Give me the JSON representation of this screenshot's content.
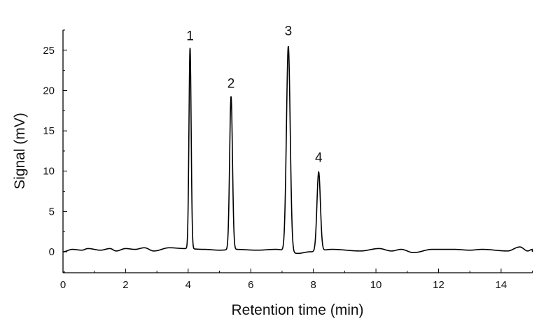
{
  "chart_data": {
    "type": "line",
    "title": "",
    "xlabel": "Retention time (min)",
    "ylabel": "Signal (mV)",
    "xlim": [
      0,
      15
    ],
    "ylim": [
      -2.6,
      27.5
    ],
    "xticks": [
      0,
      2,
      4,
      6,
      8,
      10,
      12,
      14
    ],
    "yticks": [
      0,
      5,
      10,
      15,
      20,
      25
    ],
    "grid": false,
    "line_color": "#000000",
    "peaks": [
      {
        "label": "1",
        "x": 4.06,
        "y": 25.2,
        "width": 0.035
      },
      {
        "label": "2",
        "x": 5.37,
        "y": 19.3,
        "width": 0.045
      },
      {
        "label": "3",
        "x": 7.2,
        "y": 25.8,
        "width": 0.06
      },
      {
        "label": "4",
        "x": 8.17,
        "y": 10.1,
        "width": 0.055
      }
    ],
    "baseline": [
      [
        0,
        0.0
      ],
      [
        0.3,
        0.3
      ],
      [
        0.6,
        0.2
      ],
      [
        0.8,
        0.4
      ],
      [
        1.2,
        0.2
      ],
      [
        1.5,
        0.4
      ],
      [
        1.7,
        0.1
      ],
      [
        2.0,
        0.4
      ],
      [
        2.3,
        0.3
      ],
      [
        2.6,
        0.5
      ],
      [
        2.9,
        0.1
      ],
      [
        3.4,
        0.5
      ],
      [
        3.9,
        0.4
      ],
      [
        4.5,
        0.3
      ],
      [
        5.0,
        0.2
      ],
      [
        5.5,
        0.3
      ],
      [
        6.2,
        0.2
      ],
      [
        6.8,
        0.3
      ],
      [
        7.5,
        -0.2
      ],
      [
        7.9,
        0.0
      ],
      [
        8.6,
        0.3
      ],
      [
        9.5,
        0.1
      ],
      [
        10.1,
        0.4
      ],
      [
        10.5,
        0.1
      ],
      [
        10.8,
        0.3
      ],
      [
        11.2,
        -0.1
      ],
      [
        11.8,
        0.3
      ],
      [
        12.5,
        0.3
      ],
      [
        13.0,
        0.2
      ],
      [
        13.4,
        0.3
      ],
      [
        14.2,
        0.1
      ],
      [
        14.6,
        0.6
      ],
      [
        14.85,
        0.1
      ],
      [
        15,
        0.3
      ]
    ]
  }
}
